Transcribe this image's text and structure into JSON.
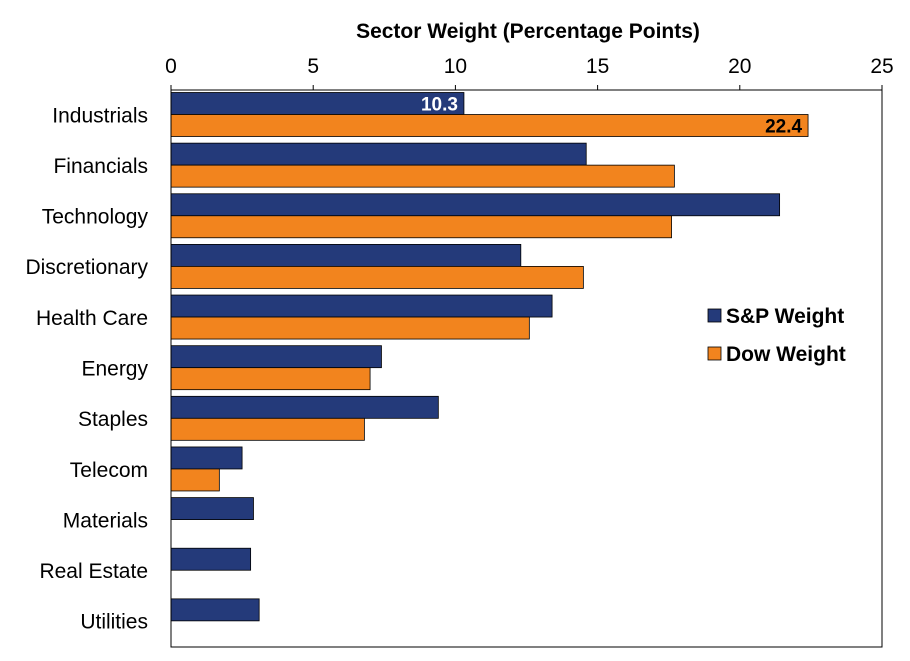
{
  "chart_data": {
    "type": "bar",
    "orientation": "horizontal",
    "title": "",
    "xlabel": "Sector Weight (Percentage Points)",
    "ylabel": "",
    "xlim": [
      0,
      25
    ],
    "xticks": [
      0,
      5,
      10,
      15,
      20,
      25
    ],
    "grid": false,
    "categories": [
      "Industrials",
      "Financials",
      "Technology",
      "Discretionary",
      "Health Care",
      "Energy",
      "Staples",
      "Telecom",
      "Materials",
      "Real Estate",
      "Utilities"
    ],
    "series": [
      {
        "name": "S&P Weight",
        "color": "#243a7a",
        "values": [
          10.3,
          14.6,
          21.4,
          12.3,
          13.4,
          7.4,
          9.4,
          2.5,
          2.9,
          2.8,
          3.1
        ]
      },
      {
        "name": "Dow Weight",
        "color": "#f2841e",
        "values": [
          22.4,
          17.7,
          17.6,
          14.5,
          12.6,
          7.0,
          6.8,
          1.7,
          null,
          null,
          null
        ]
      }
    ],
    "data_labels": [
      {
        "series": 0,
        "category": 0,
        "text": "10.3",
        "color": "#ffffff"
      },
      {
        "series": 1,
        "category": 0,
        "text": "22.4",
        "color": "#000000"
      }
    ],
    "legend": {
      "position": "right",
      "entries": [
        "S&P Weight",
        "Dow Weight"
      ]
    }
  }
}
